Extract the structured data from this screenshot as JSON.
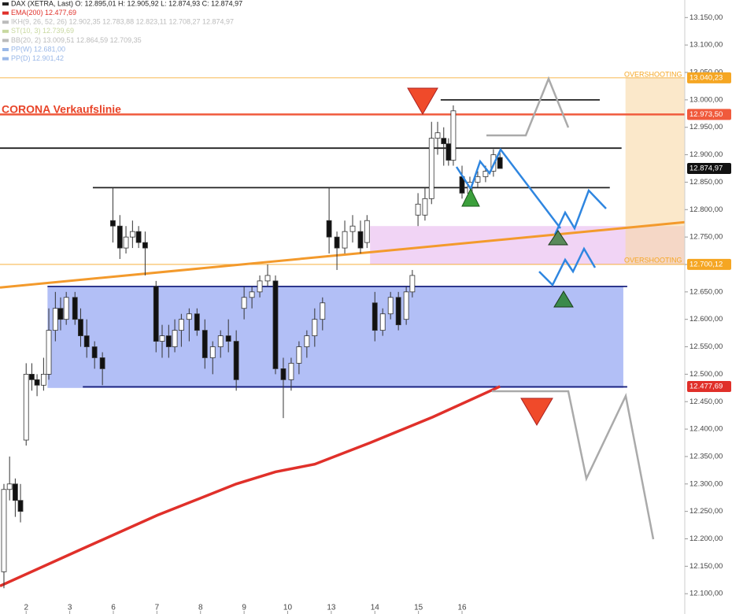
{
  "chart_data": {
    "type": "candlestick",
    "legend": [
      {
        "text": "DAX (XETRA, Last)  O: 12.895,01  H: 12.905,92  L: 12.874,93  C: 12.874,97",
        "color": "#222222"
      },
      {
        "text": "EMA(200)  12.477,69",
        "color": "#e0302a"
      },
      {
        "text": "IKH(9, 26, 52, 26)  12.902,35  12.783,88  12.823,11  12.708,27  12.874,97",
        "color": "#bbbbbb"
      },
      {
        "text": "ST(10, 3)  12.739,69",
        "color": "#c8d8a0"
      },
      {
        "text": "BB(20, 2)  13.009,51  12.864,59  12.709,35",
        "color": "#bbbbbb"
      },
      {
        "text": "PP(W)  12.681,00",
        "color": "#9ab8e8"
      },
      {
        "text": "PP(D)  12.901,42",
        "color": "#9ab8e8"
      }
    ],
    "xlim": [
      0.4,
      16.11
    ],
    "ylim": [
      12063,
      13182
    ],
    "xticks": [
      {
        "value": 1,
        "label": "2"
      },
      {
        "value": 2,
        "label": "3"
      },
      {
        "value": 3,
        "label": "6"
      },
      {
        "value": 4,
        "label": "7"
      },
      {
        "value": 5,
        "label": "8"
      },
      {
        "value": 6,
        "label": "9"
      },
      {
        "value": 7,
        "label": "10"
      },
      {
        "value": 8,
        "label": "13"
      },
      {
        "value": 9,
        "label": "14"
      },
      {
        "value": 10,
        "label": "15"
      },
      {
        "value": 11,
        "label": "16"
      }
    ],
    "yticks": [
      {
        "value": 12100,
        "label": "12.100,00"
      },
      {
        "value": 12150,
        "label": "12.150,00"
      },
      {
        "value": 12200,
        "label": "12.200,00"
      },
      {
        "value": 12250,
        "label": "12.250,00"
      },
      {
        "value": 12300,
        "label": "12.300,00"
      },
      {
        "value": 12350,
        "label": "12.350,00"
      },
      {
        "value": 12400,
        "label": "12.400,00"
      },
      {
        "value": 12450,
        "label": "12.450,00"
      },
      {
        "value": 12500,
        "label": "12.500,00"
      },
      {
        "value": 12550,
        "label": "12.550,00"
      },
      {
        "value": 12600,
        "label": "12.600,00"
      },
      {
        "value": 12650,
        "label": "12.650,00"
      },
      {
        "value": 12700,
        "label": "12.700,00"
      },
      {
        "value": 12750,
        "label": "12.750,00"
      },
      {
        "value": 12800,
        "label": "12.800,00"
      },
      {
        "value": 12850,
        "label": "12.850,00"
      },
      {
        "value": 12900,
        "label": "12.900,00"
      },
      {
        "value": 12950,
        "label": "12.950,00"
      },
      {
        "value": 13000,
        "label": "13.000,00"
      },
      {
        "value": 13050,
        "label": "13.050,00"
      },
      {
        "value": 13100,
        "label": "13.100,00"
      },
      {
        "value": 13150,
        "label": "13.150,00"
      }
    ],
    "x": [
      0.49,
      0.62,
      0.75,
      0.87,
      1.0,
      1.13,
      1.25,
      1.4,
      1.52,
      1.67,
      1.79,
      1.92,
      2.12,
      2.25,
      2.39,
      2.57,
      2.75,
      2.99,
      3.15,
      3.29,
      3.44,
      3.58,
      3.73,
      3.98,
      4.12,
      4.27,
      4.41,
      4.56,
      4.74,
      4.92,
      5.1,
      5.28,
      5.46,
      5.64,
      5.82,
      6.0,
      6.18,
      6.36,
      6.54,
      6.72,
      6.9,
      7.08,
      7.26,
      7.44,
      7.62,
      7.8,
      7.95,
      8.13,
      8.31,
      8.49,
      8.67,
      8.82,
      9.0,
      9.18,
      9.36,
      9.54,
      9.72,
      9.86,
      9.99,
      10.15,
      10.3,
      10.44,
      10.58,
      10.69,
      10.8,
      11.0,
      11.18,
      11.36,
      11.54,
      11.72,
      11.87
    ],
    "open": [
      12140,
      12290,
      12300,
      12270,
      12380,
      12500,
      12490,
      12480,
      12500,
      12580,
      12620,
      12600,
      12640,
      12600,
      12570,
      12550,
      12530,
      12780,
      12770,
      12730,
      12750,
      12760,
      12740,
      12660,
      12560,
      12570,
      12550,
      12580,
      12600,
      12610,
      12580,
      12530,
      12550,
      12570,
      12560,
      12620,
      12640,
      12650,
      12670,
      12670,
      12510,
      12490,
      12520,
      12550,
      12570,
      12600,
      12780,
      12750,
      12730,
      12760,
      12760,
      12740,
      12630,
      12580,
      12610,
      12640,
      12600,
      12650,
      12790,
      12790,
      12820,
      12930,
      12930,
      12920,
      12890,
      12860,
      12830,
      12850,
      12860,
      12870,
      12895.01
    ],
    "high": [
      12300,
      12350,
      12310,
      12300,
      12520,
      12520,
      12500,
      12530,
      12620,
      12650,
      12640,
      12650,
      12650,
      12620,
      12600,
      12560,
      12540,
      12840,
      12790,
      12770,
      12780,
      12770,
      12760,
      12670,
      12590,
      12590,
      12600,
      12610,
      12620,
      12620,
      12600,
      12560,
      12580,
      12600,
      12580,
      12660,
      12660,
      12680,
      12700,
      12680,
      12530,
      12530,
      12560,
      12580,
      12620,
      12640,
      12840,
      12760,
      12780,
      12790,
      12780,
      12790,
      12650,
      12620,
      12650,
      12650,
      12660,
      12690,
      12830,
      12840,
      12960,
      12960,
      12950,
      12930,
      12990,
      12880,
      12860,
      12870,
      12880,
      12910,
      12905.92
    ],
    "low": [
      12110,
      12270,
      12240,
      12230,
      12370,
      12470,
      12460,
      12470,
      12490,
      12560,
      12580,
      12590,
      12590,
      12550,
      12530,
      12510,
      12480,
      12740,
      12710,
      12720,
      12730,
      12730,
      12680,
      12540,
      12530,
      12530,
      12540,
      12550,
      12560,
      12570,
      12510,
      12500,
      12530,
      12540,
      12470,
      12600,
      12620,
      12640,
      12660,
      12500,
      12420,
      12470,
      12500,
      12530,
      12550,
      12580,
      12720,
      12690,
      12720,
      12740,
      12720,
      12730,
      12560,
      12570,
      12600,
      12580,
      12590,
      12640,
      12770,
      12780,
      12810,
      12900,
      12880,
      12880,
      12880,
      12820,
      12820,
      12840,
      12850,
      12860,
      12874.93
    ],
    "close": [
      12290,
      12300,
      12270,
      12250,
      12500,
      12490,
      12480,
      12500,
      12580,
      12620,
      12600,
      12640,
      12600,
      12570,
      12550,
      12530,
      12510,
      12770,
      12730,
      12750,
      12760,
      12740,
      12730,
      12560,
      12570,
      12550,
      12580,
      12600,
      12610,
      12580,
      12530,
      12550,
      12570,
      12560,
      12490,
      12640,
      12650,
      12670,
      12680,
      12510,
      12490,
      12520,
      12550,
      12570,
      12600,
      12630,
      12750,
      12730,
      12760,
      12770,
      12730,
      12780,
      12580,
      12610,
      12640,
      12590,
      12650,
      12680,
      12810,
      12820,
      12930,
      12940,
      12920,
      12890,
      12980,
      12830,
      12850,
      12860,
      12870,
      12900,
      12874.97
    ],
    "ema": {
      "name": "EMA(200)",
      "color": "#e0302a",
      "x": [
        0.4,
        2.21,
        4.01,
        5.82,
        6.72,
        7.62,
        8.89,
        10.33,
        11.87
      ],
      "values": [
        12114,
        12179,
        12243,
        12300,
        12322,
        12336,
        12375,
        12422,
        12477.69
      ]
    },
    "levels": [
      {
        "value": 13040.23,
        "label": "13.040,23",
        "color": "#f5a623",
        "line": true
      },
      {
        "value": 12973.5,
        "label": "12.973,50",
        "color": "#f05a3c",
        "line": true
      },
      {
        "value": 12874.97,
        "label": "12.874,97",
        "color": "#111111",
        "line": false
      },
      {
        "value": 12700.12,
        "label": "12.700,12",
        "color": "#f5a623",
        "line": true
      },
      {
        "value": 12477.69,
        "label": "12.477,69",
        "color": "#e0302a",
        "line": false
      }
    ],
    "hlines": [
      {
        "value": 13000,
        "x": [
          10.51,
          14.16
        ],
        "color": "#222222"
      },
      {
        "value": 12912,
        "x": [
          0.4,
          14.66
        ],
        "color": "#222222"
      },
      {
        "value": 12840,
        "x": [
          2.53,
          14.39
        ],
        "color": "#222222"
      },
      {
        "value": 12660,
        "x": [
          1.49,
          14.79
        ],
        "color": "#1a237e"
      },
      {
        "value": 12477,
        "x": [
          2.3,
          14.79
        ],
        "color": "#1a237e"
      }
    ],
    "zones": [
      {
        "x": [
          1.49,
          14.7
        ],
        "y": [
          12475,
          12660
        ],
        "color": "#7f95f0"
      },
      {
        "x": [
          8.89,
          16.11
        ],
        "y": [
          12700,
          12770
        ],
        "color": "#e7b7ee"
      },
      {
        "x": [
          14.75,
          16.11
        ],
        "y": [
          12700,
          13040
        ],
        "color": "#f9d9a6"
      }
    ],
    "trendline": {
      "x": [
        0.4,
        16.11
      ],
      "y": [
        12658,
        12777
      ],
      "color": "#f39a2c"
    },
    "annotations": {
      "corona": "CORONA Verkaufslinie",
      "overshooting_top": "OVERSHOOTING",
      "overshooting_bottom": "OVERSHOOTING"
    }
  }
}
